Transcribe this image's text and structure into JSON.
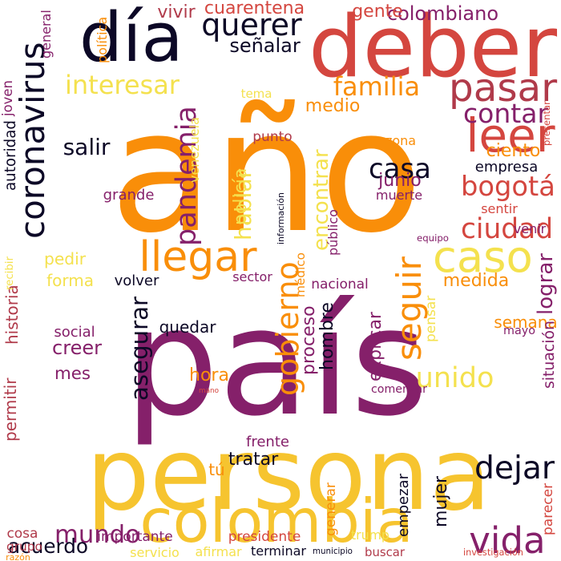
{
  "palette": {
    "orange": "#f98e09",
    "purple": "#85206a",
    "yellow": "#f6c42f",
    "red": "#d4463f",
    "black": "#0c0826",
    "lightyellow": "#f4e14e",
    "darkred": "#b03a4a"
  },
  "words": [
    {
      "text": "año",
      "color": "orange",
      "orient": "h"
    },
    {
      "text": "país",
      "color": "purple",
      "orient": "h"
    },
    {
      "text": "persona",
      "color": "yellow",
      "orient": "h"
    },
    {
      "text": "deber",
      "color": "red",
      "orient": "h"
    },
    {
      "text": "día",
      "color": "black",
      "orient": "h"
    },
    {
      "text": "colombia",
      "color": "yellow",
      "orient": "h"
    },
    {
      "text": "coronavirus",
      "color": "black",
      "orient": "v"
    },
    {
      "text": "caso",
      "color": "lightyellow",
      "orient": "h"
    },
    {
      "text": "pasar",
      "color": "darkred",
      "orient": "h"
    },
    {
      "text": "leer",
      "color": "red",
      "orient": "h"
    },
    {
      "text": "llegar",
      "color": "orange",
      "orient": "h"
    },
    {
      "text": "seguir",
      "color": "orange",
      "orient": "v"
    },
    {
      "text": "vida",
      "color": "purple",
      "orient": "h"
    },
    {
      "text": "querer",
      "color": "black",
      "orient": "h"
    },
    {
      "text": "interesar",
      "color": "lightyellow",
      "orient": "h"
    },
    {
      "text": "familia",
      "color": "orange",
      "orient": "h"
    },
    {
      "text": "pandemia",
      "color": "purple",
      "orient": "v"
    },
    {
      "text": "ciudad",
      "color": "red",
      "orient": "h"
    },
    {
      "text": "gobierno",
      "color": "orange",
      "orient": "v"
    },
    {
      "text": "unido",
      "color": "lightyellow",
      "orient": "h"
    },
    {
      "text": "mundo",
      "color": "purple",
      "orient": "h"
    },
    {
      "text": "dejar",
      "color": "black",
      "orient": "h"
    },
    {
      "text": "casa",
      "color": "black",
      "orient": "h"
    },
    {
      "text": "bogotá",
      "color": "red",
      "orient": "h"
    },
    {
      "text": "contar",
      "color": "purple",
      "orient": "h"
    },
    {
      "text": "encontrar",
      "color": "lightyellow",
      "orient": "v"
    },
    {
      "text": "colombiano",
      "color": "purple",
      "orient": "h"
    },
    {
      "text": "hablar",
      "color": "lightyellow",
      "orient": "v"
    },
    {
      "text": "asegurar",
      "color": "black",
      "orient": "v"
    },
    {
      "text": "salir",
      "color": "black",
      "orient": "h"
    },
    {
      "text": "señalar",
      "color": "black",
      "orient": "h"
    },
    {
      "text": "cuarentena",
      "color": "red",
      "orient": "h"
    },
    {
      "text": "vivir",
      "color": "darkred",
      "orient": "h"
    },
    {
      "text": "gente",
      "color": "red",
      "orient": "h"
    },
    {
      "text": "medio",
      "color": "orange",
      "orient": "h"
    },
    {
      "text": "ciento",
      "color": "orange",
      "orient": "h"
    },
    {
      "text": "junio",
      "color": "purple",
      "orient": "h"
    },
    {
      "text": "empresa",
      "color": "black",
      "orient": "h"
    },
    {
      "text": "medida",
      "color": "orange",
      "orient": "h"
    },
    {
      "text": "lograr",
      "color": "purple",
      "orient": "v"
    },
    {
      "text": "volver",
      "color": "black",
      "orient": "h"
    },
    {
      "text": "pedir",
      "color": "lightyellow",
      "orient": "h"
    },
    {
      "text": "forma",
      "color": "lightyellow",
      "orient": "h"
    },
    {
      "text": "quedar",
      "color": "black",
      "orient": "h"
    },
    {
      "text": "creer",
      "color": "purple",
      "orient": "h"
    },
    {
      "text": "mes",
      "color": "purple",
      "orient": "h"
    },
    {
      "text": "hora",
      "color": "orange",
      "orient": "h"
    },
    {
      "text": "proceso",
      "color": "purple",
      "orient": "v"
    },
    {
      "text": "hombre",
      "color": "black",
      "orient": "v"
    },
    {
      "text": "explicar",
      "color": "purple",
      "orient": "v"
    },
    {
      "text": "semana",
      "color": "orange",
      "orient": "h"
    },
    {
      "text": "situación",
      "color": "purple",
      "orient": "v"
    },
    {
      "text": "tratar",
      "color": "black",
      "orient": "h"
    },
    {
      "text": "mujer",
      "color": "black",
      "orient": "v"
    },
    {
      "text": "acuerdo",
      "color": "black",
      "orient": "h"
    },
    {
      "text": "historia",
      "color": "darkred",
      "orient": "v"
    },
    {
      "text": "permitir",
      "color": "darkred",
      "orient": "v"
    },
    {
      "text": "social",
      "color": "purple",
      "orient": "h"
    },
    {
      "text": "policía",
      "color": "lightyellow",
      "orient": "v"
    },
    {
      "text": "punto",
      "color": "darkred",
      "orient": "h"
    },
    {
      "text": "zona",
      "color": "orange",
      "orient": "h"
    },
    {
      "text": "grande",
      "color": "purple",
      "orient": "h"
    },
    {
      "text": "muerte",
      "color": "purple",
      "orient": "h"
    },
    {
      "text": "venir",
      "color": "purple",
      "orient": "h"
    },
    {
      "text": "sentir",
      "color": "red",
      "orient": "h"
    },
    {
      "text": "nacional",
      "color": "purple",
      "orient": "h"
    },
    {
      "text": "sector",
      "color": "purple",
      "orient": "h"
    },
    {
      "text": "frente",
      "color": "purple",
      "orient": "h"
    },
    {
      "text": "tú",
      "color": "orange",
      "orient": "h"
    },
    {
      "text": "importante",
      "color": "purple",
      "orient": "h"
    },
    {
      "text": "presidente",
      "color": "red",
      "orient": "h"
    },
    {
      "text": "trump",
      "color": "lightyellow",
      "orient": "h"
    },
    {
      "text": "empezar",
      "color": "black",
      "orient": "v"
    },
    {
      "text": "generar",
      "color": "orange",
      "orient": "v"
    },
    {
      "text": "parecer",
      "color": "red",
      "orient": "v"
    },
    {
      "text": "cosa",
      "color": "darkred",
      "orient": "h"
    },
    {
      "text": "grupo",
      "color": "darkred",
      "orient": "h"
    },
    {
      "text": "comenzar",
      "color": "purple",
      "orient": "h"
    },
    {
      "text": "mayo",
      "color": "purple",
      "orient": "h"
    },
    {
      "text": "pensar",
      "color": "lightyellow",
      "orient": "v"
    },
    {
      "text": "servicio",
      "color": "lightyellow",
      "orient": "h"
    },
    {
      "text": "afirmar",
      "color": "lightyellow",
      "orient": "h"
    },
    {
      "text": "terminar",
      "color": "black",
      "orient": "h"
    },
    {
      "text": "buscar",
      "color": "darkred",
      "orient": "h"
    },
    {
      "text": "municipio",
      "color": "black",
      "orient": "h"
    },
    {
      "text": "investigación",
      "color": "red",
      "orient": "h"
    },
    {
      "text": "autoridad",
      "color": "black",
      "orient": "v"
    },
    {
      "text": "recibir",
      "color": "lightyellow",
      "orient": "v"
    },
    {
      "text": "joven",
      "color": "purple",
      "orient": "v"
    },
    {
      "text": "general",
      "color": "purple",
      "orient": "v"
    },
    {
      "text": "política",
      "color": "orange",
      "orient": "v"
    },
    {
      "text": "tema",
      "color": "lightyellow",
      "orient": "h"
    },
    {
      "text": "venezuela",
      "color": "lightyellow",
      "orient": "v"
    },
    {
      "text": "información",
      "color": "black",
      "orient": "v"
    },
    {
      "text": "público",
      "color": "purple",
      "orient": "v"
    },
    {
      "text": "médico",
      "color": "orange",
      "orient": "v"
    },
    {
      "text": "equipo",
      "color": "purple",
      "orient": "h"
    },
    {
      "text": "presentar",
      "color": "red",
      "orient": "v"
    },
    {
      "text": "mano",
      "color": "red",
      "orient": "h"
    },
    {
      "text": "razón",
      "color": "orange",
      "orient": "h"
    }
  ]
}
